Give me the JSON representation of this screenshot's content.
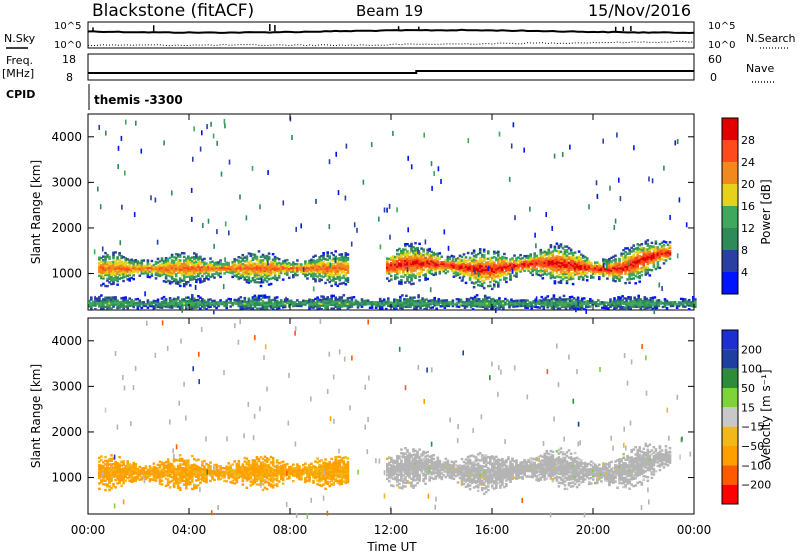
{
  "header": {
    "station": "Blackstone (fitACF)",
    "beam": "Beam 19",
    "date": "15/Nov/2016"
  },
  "top_panels": {
    "nsky_label": "N.Sky",
    "nsearch_label": "N.Search",
    "noise_ticks": [
      "10^5",
      "10^0"
    ],
    "freq_label": "Freq.",
    "freq_unit": "[MHz]",
    "freq_ticks": [
      "18",
      "8"
    ],
    "nave_label": "Nave",
    "nave_ticks": [
      "60",
      "0"
    ],
    "cpid_label": "CPID",
    "cpid_value": "themis -3300"
  },
  "colors": {
    "power_scale": [
      "#0014ff",
      "#2a3fa0",
      "#2f8a5a",
      "#3fa85c",
      "#e6d21a",
      "#f08a1e",
      "#ff4a1e",
      "#e00000"
    ],
    "velocity_scale": [
      "#ff0000",
      "#ff5a00",
      "#ffa000",
      "#f2b81a",
      "#c8c8c8",
      "#7ed23a",
      "#2e8b3a",
      "#1e3fa0",
      "#1e2fd2"
    ],
    "ground_scatter": "#b4b4b4"
  },
  "chart_data": [
    {
      "type": "heatmap",
      "title": "",
      "xlabel": "",
      "ylabel": "Slant Range [km]",
      "x_ticks": [
        "00:00",
        "04:00",
        "08:00",
        "12:00",
        "16:00",
        "20:00",
        "00:00"
      ],
      "x_range_hours": [
        0,
        24
      ],
      "y_ticks": [
        "1000",
        "2000",
        "3000",
        "4000"
      ],
      "ylim": [
        200,
        4500
      ],
      "colorbar": {
        "label": "Power [dB]",
        "ticks": [
          "4",
          "8",
          "12",
          "16",
          "20",
          "24",
          "28"
        ],
        "range": [
          0,
          32
        ]
      },
      "features": [
        {
          "name": "morning band",
          "t_start": 0.4,
          "t_end": 10.3,
          "range_center_km": 1100,
          "range_halfwidth_km": 180,
          "peak_power_db": 25
        },
        {
          "name": "afternoon band",
          "t_start": 11.8,
          "t_end": 23.0,
          "range_center_km": 1150,
          "range_halfwidth_km": 210,
          "peak_power_db": 30
        },
        {
          "name": "near-range clutter",
          "t_start": 0.0,
          "t_end": 24.0,
          "range_center_km": 330,
          "range_halfwidth_km": 90,
          "peak_power_db": 14
        }
      ]
    },
    {
      "type": "heatmap",
      "title": "",
      "xlabel": "Time UT",
      "ylabel": "Slant Range [km]",
      "x_ticks": [
        "00:00",
        "04:00",
        "08:00",
        "12:00",
        "16:00",
        "20:00",
        "00:00"
      ],
      "x_range_hours": [
        0,
        24
      ],
      "y_ticks": [
        "1000",
        "2000",
        "3000",
        "4000"
      ],
      "ylim": [
        200,
        4500
      ],
      "colorbar": {
        "label": "Velocity [m s⁻¹]",
        "ticks": [
          "200",
          "100",
          "50",
          "15",
          "−15",
          "−50",
          "−100",
          "−200"
        ],
        "range": [
          -250,
          250
        ]
      },
      "features": [
        {
          "name": "morning band",
          "t_start": 0.4,
          "t_end": 10.3,
          "range_center_km": 1100,
          "range_halfwidth_km": 180,
          "velocity_ms": -60
        },
        {
          "name": "afternoon band",
          "t_start": 11.8,
          "t_end": 23.0,
          "range_center_km": 1150,
          "range_halfwidth_km": 210,
          "velocity_ms": 0
        }
      ]
    }
  ]
}
